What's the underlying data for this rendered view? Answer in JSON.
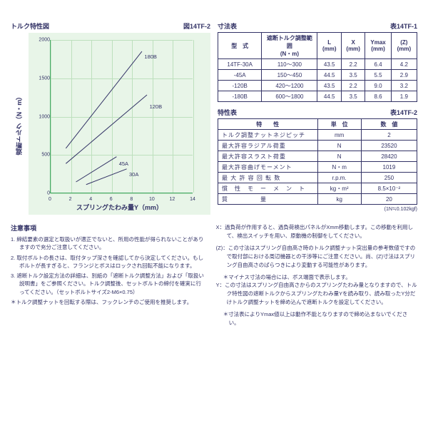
{
  "chart": {
    "title": "トルク特性図",
    "figLabel": "図14TF-2",
    "ylabel": "遮断トルク（N・m）",
    "xlabel": "スプリングたわみ量Y（mm）",
    "background_color": "#e8f5e8",
    "grid_color": "#bde0bd",
    "xlim": [
      0,
      14
    ],
    "ylim": [
      0,
      2000
    ],
    "xticks": [
      0,
      2,
      4,
      6,
      8,
      10,
      12,
      14
    ],
    "yticks": [
      0,
      500,
      1000,
      1500,
      2000
    ],
    "series": [
      {
        "name": "180B",
        "points": [
          [
            1.5,
            580
          ],
          [
            9,
            1850
          ]
        ],
        "label_xy": [
          9.2,
          1820
        ]
      },
      {
        "name": "120B",
        "points": [
          [
            1.5,
            380
          ],
          [
            9.5,
            1280
          ]
        ],
        "label_xy": [
          9.7,
          1170
        ]
      },
      {
        "name": "45A",
        "points": [
          [
            2.5,
            140
          ],
          [
            6.5,
            470
          ]
        ],
        "label_xy": [
          6.7,
          430
        ]
      },
      {
        "name": "30A",
        "points": [
          [
            3.5,
            105
          ],
          [
            7.5,
            310
          ]
        ],
        "label_xy": [
          7.7,
          290
        ]
      }
    ],
    "line_color": "#336",
    "line_width": 1
  },
  "dimTable": {
    "title": "寸法表",
    "ref": "表14TF-1",
    "headers": [
      "型　式",
      "遮断トルク調整範囲\n(N・m)",
      "L\n(mm)",
      "X\n(mm)",
      "Ymax\n(mm)",
      "(Z)\n(mm)"
    ],
    "rows": [
      [
        "14TF-30A",
        "110～300",
        "43.5",
        "2.2",
        "6.4",
        "4.2"
      ],
      [
        "-45A",
        "150～450",
        "44.5",
        "3.5",
        "5.5",
        "2.9"
      ],
      [
        "-120B",
        "420～1200",
        "43.5",
        "2.2",
        "9.0",
        "3.2"
      ],
      [
        "-180B",
        "600～1800",
        "44.5",
        "3.5",
        "8.6",
        "1.9"
      ]
    ],
    "col_widths": [
      "22%",
      "28%",
      "12%",
      "12%",
      "13%",
      "13%"
    ]
  },
  "charTable": {
    "title": "特性表",
    "ref": "表14TF-2",
    "headers": [
      "特　　性",
      "単　位",
      "数　値"
    ],
    "rows": [
      [
        "トルク調整ナットネジピッチ",
        "mm",
        "2"
      ],
      [
        "最大許容ラジアル荷重",
        "N",
        "23520"
      ],
      [
        "最大許容スラスト荷重",
        "N",
        "28420"
      ],
      [
        "最大許容曲げモーメント",
        "N・m",
        "1019"
      ],
      [
        "最 大 許 容 回 転 数",
        "r.p.m.",
        "250"
      ],
      [
        "慣　性　モ　ー　メ　ン　ト",
        "kg・m²",
        "8.5×10⁻²"
      ],
      [
        "質　　　　　量",
        "kg",
        "20"
      ]
    ],
    "footnote": "(1N≒0.102kgf)",
    "col_widths": [
      "50%",
      "22%",
      "28%"
    ]
  },
  "notesLeft": {
    "title": "注意事項",
    "items": [
      "1. 締結要素の選定と取扱いが適正でないと、所用の性能が得られないことがありますので充分ご注意してください。",
      "2. 取付ボルトの長さは、取付タップ深さを確認してから決定してください。もしボルトが長すぎると、フランジとボスはロックされ回転不能になります。",
      "3. 遮断トルク設定方法の詳細は、別紙の「遮断トルク調整方法」および「取扱い説明書」をご参照ください。トルク調整後、セットボルトの締付を確実に行ってください。（セットボルトサイズ2-M6×0.75）"
    ],
    "star": "＊トルク調整ナットを回転する際は、フックレンチのご使用を推奨します。"
  },
  "notesRight": [
    {
      "key": "X：",
      "text": "過負荷が作用すると、過負荷検出パネルがXmm移動します。この移動を利用して、検出スイッチを用い、原動機の制御をしてください。"
    },
    {
      "key": "(Z)：",
      "text": "この寸法はスプリング自由高さ時のトルク調整ナット突出量の参考数値ですので取付部における周辺機器との干渉等にご注意ください。尚、(Z)寸法はスプリング自由高さのばらつきにより変動する可能性があります。",
      "star": "＊マイナス寸法の場合には、ボス端面で表示します。"
    },
    {
      "key": "Y：",
      "text": "この寸法はスプリング自由高さからのスプリングたわみ量となりますので、トルク特性図の遮断トルクからスプリングたわみ量Yを読み取り、読み取ったY分だけトルク調整ナットを締め込んで遮断トルクを設定してください。",
      "star": "＊寸法表によりYmax値以上は動作不能となりますので締め込まないでください。"
    }
  ]
}
